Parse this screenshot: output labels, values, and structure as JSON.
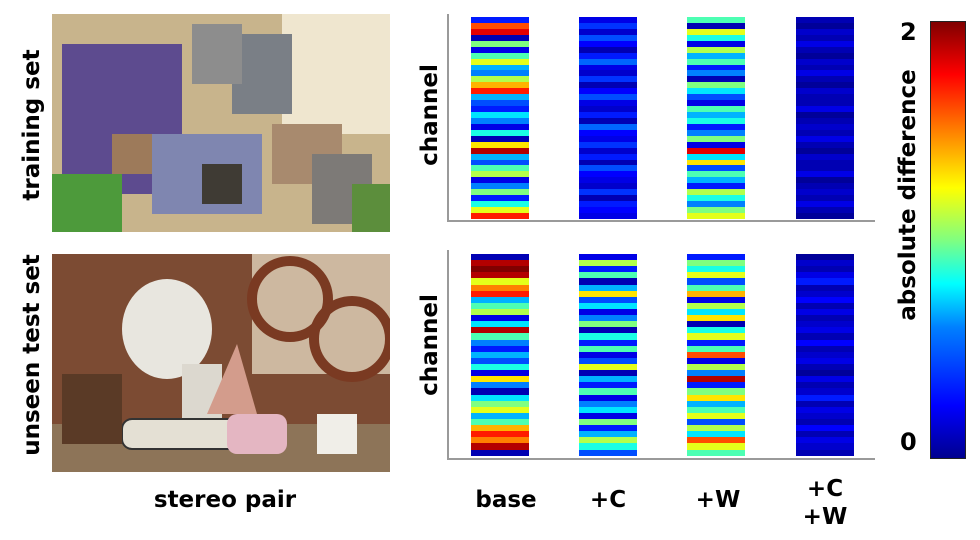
{
  "row_labels": [
    "training set",
    "unseen test set"
  ],
  "ylabel": "channel",
  "xlabel_images": "stereo pair",
  "column_labels": [
    "base",
    "+C",
    "+W",
    "+C\n+W"
  ],
  "colorbar": {
    "label": "absolute difference",
    "max_label": "2",
    "min_label": "0"
  },
  "chart_data": [
    {
      "type": "heatmap",
      "row": "training set",
      "ylabel": "channel",
      "columns": [
        "base",
        "+C",
        "+W",
        "+C +W"
      ],
      "range": [
        0,
        2
      ],
      "values": {
        "base": [
          0.3,
          1.6,
          1.8,
          0.1,
          1.0,
          0.2,
          0.9,
          1.2,
          0.6,
          0.5,
          1.1,
          1.4,
          1.7,
          0.6,
          0.4,
          0.3,
          0.7,
          0.5,
          0.2,
          0.8,
          0.1,
          1.3,
          1.9,
          0.6,
          0.4,
          0.9,
          1.1,
          0.2,
          0.5,
          1.0,
          0.3,
          0.8,
          1.2,
          1.7
        ],
        "+C": [
          0.2,
          0.35,
          0.15,
          0.4,
          0.25,
          0.1,
          0.3,
          0.45,
          0.2,
          0.15,
          0.35,
          0.1,
          0.25,
          0.4,
          0.2,
          0.15,
          0.3,
          0.1,
          0.45,
          0.25,
          0.2,
          0.35,
          0.15,
          0.3,
          0.1,
          0.4,
          0.25,
          0.2,
          0.15,
          0.35,
          0.1,
          0.3,
          0.25,
          0.2
        ],
        "+W": [
          0.9,
          0.1,
          1.2,
          0.8,
          0.2,
          1.1,
          0.6,
          0.9,
          0.3,
          0.5,
          0.1,
          1.0,
          0.7,
          0.4,
          0.2,
          0.9,
          0.6,
          0.8,
          0.3,
          0.5,
          1.0,
          0.2,
          1.8,
          0.7,
          1.3,
          0.4,
          0.9,
          0.6,
          0.3,
          1.1,
          0.8,
          0.5,
          1.0,
          1.2
        ],
        "+C +W": [
          0.1,
          0.05,
          0.15,
          0.1,
          0.2,
          0.1,
          0.05,
          0.15,
          0.1,
          0.2,
          0.1,
          0.05,
          0.15,
          0.1,
          0.1,
          0.2,
          0.05,
          0.1,
          0.15,
          0.1,
          0.2,
          0.1,
          0.05,
          0.15,
          0.1,
          0.1,
          0.2,
          0.05,
          0.1,
          0.15,
          0.1,
          0.2,
          0.1,
          0.05
        ]
      }
    },
    {
      "type": "heatmap",
      "row": "unseen test set",
      "ylabel": "channel",
      "columns": [
        "base",
        "+C",
        "+W",
        "+C +W"
      ],
      "range": [
        0,
        2
      ],
      "values": {
        "base": [
          0.1,
          1.9,
          2.0,
          1.9,
          1.2,
          1.5,
          1.7,
          0.6,
          0.9,
          1.1,
          0.2,
          0.7,
          1.9,
          0.9,
          0.5,
          0.3,
          0.6,
          0.4,
          0.8,
          0.2,
          1.3,
          0.5,
          0.1,
          0.7,
          1.0,
          1.2,
          0.6,
          0.9,
          1.4,
          1.7,
          1.5,
          1.9,
          0.1
        ],
        "+C": [
          0.2,
          1.1,
          0.3,
          0.9,
          0.1,
          0.6,
          1.3,
          0.4,
          0.7,
          0.2,
          0.5,
          1.0,
          0.1,
          0.8,
          0.3,
          0.9,
          0.2,
          0.4,
          1.2,
          0.1,
          0.6,
          0.3,
          0.9,
          0.2,
          0.5,
          0.7,
          0.2,
          1.0,
          0.3,
          0.6,
          1.1,
          0.8,
          0.4
        ],
        "+W": [
          0.3,
          1.0,
          0.8,
          1.2,
          0.4,
          0.9,
          1.4,
          0.2,
          1.1,
          0.7,
          1.3,
          0.1,
          0.8,
          1.2,
          0.3,
          0.9,
          1.6,
          0.2,
          1.1,
          0.5,
          1.9,
          0.3,
          1.0,
          1.3,
          0.6,
          0.9,
          1.2,
          0.4,
          1.1,
          0.7,
          1.6,
          1.2,
          0.9
        ],
        "+C +W": [
          0.05,
          0.15,
          0.1,
          0.2,
          0.3,
          0.1,
          0.15,
          0.25,
          0.1,
          0.2,
          0.1,
          0.15,
          0.2,
          0.1,
          0.25,
          0.1,
          0.15,
          0.2,
          0.1,
          0.05,
          0.2,
          0.1,
          0.15,
          0.3,
          0.1,
          0.2,
          0.15,
          0.1,
          0.25,
          0.1,
          0.2,
          0.15,
          0.1
        ]
      }
    }
  ]
}
